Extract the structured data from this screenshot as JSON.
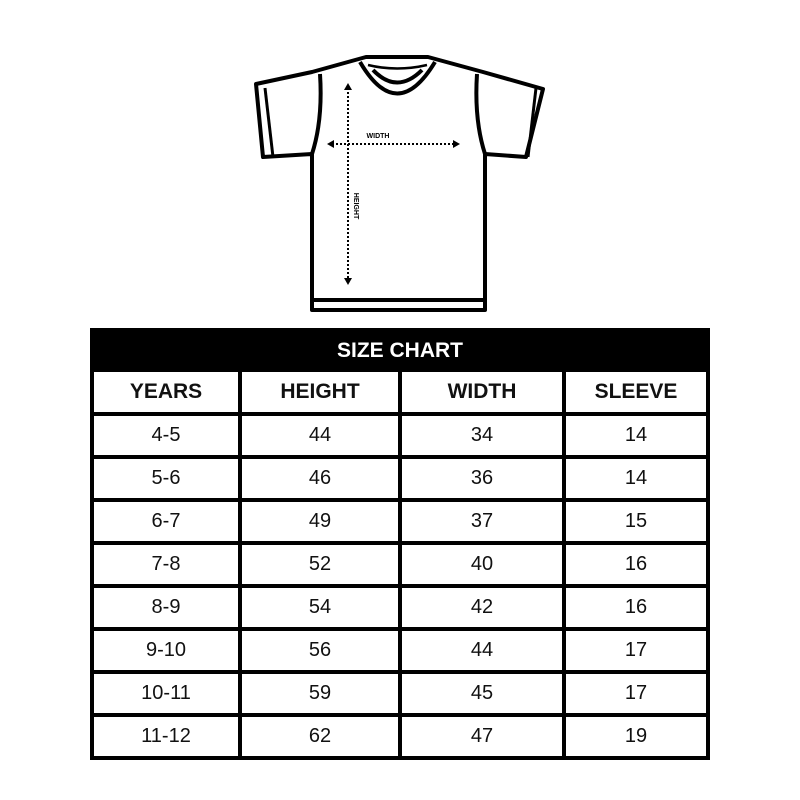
{
  "diagram": {
    "width_label": "WIDTH",
    "height_label": "HEIGHT"
  },
  "size_chart": {
    "title": "SIZE CHART",
    "columns": [
      "YEARS",
      "HEIGHT",
      "WIDTH",
      "SLEEVE"
    ],
    "rows": [
      [
        "4-5",
        "44",
        "34",
        "14"
      ],
      [
        "5-6",
        "46",
        "36",
        "14"
      ],
      [
        "6-7",
        "49",
        "37",
        "15"
      ],
      [
        "7-8",
        "52",
        "40",
        "16"
      ],
      [
        "8-9",
        "54",
        "42",
        "16"
      ],
      [
        "9-10",
        "56",
        "44",
        "17"
      ],
      [
        "10-11",
        "59",
        "45",
        "17"
      ],
      [
        "11-12",
        "62",
        "47",
        "19"
      ]
    ]
  }
}
